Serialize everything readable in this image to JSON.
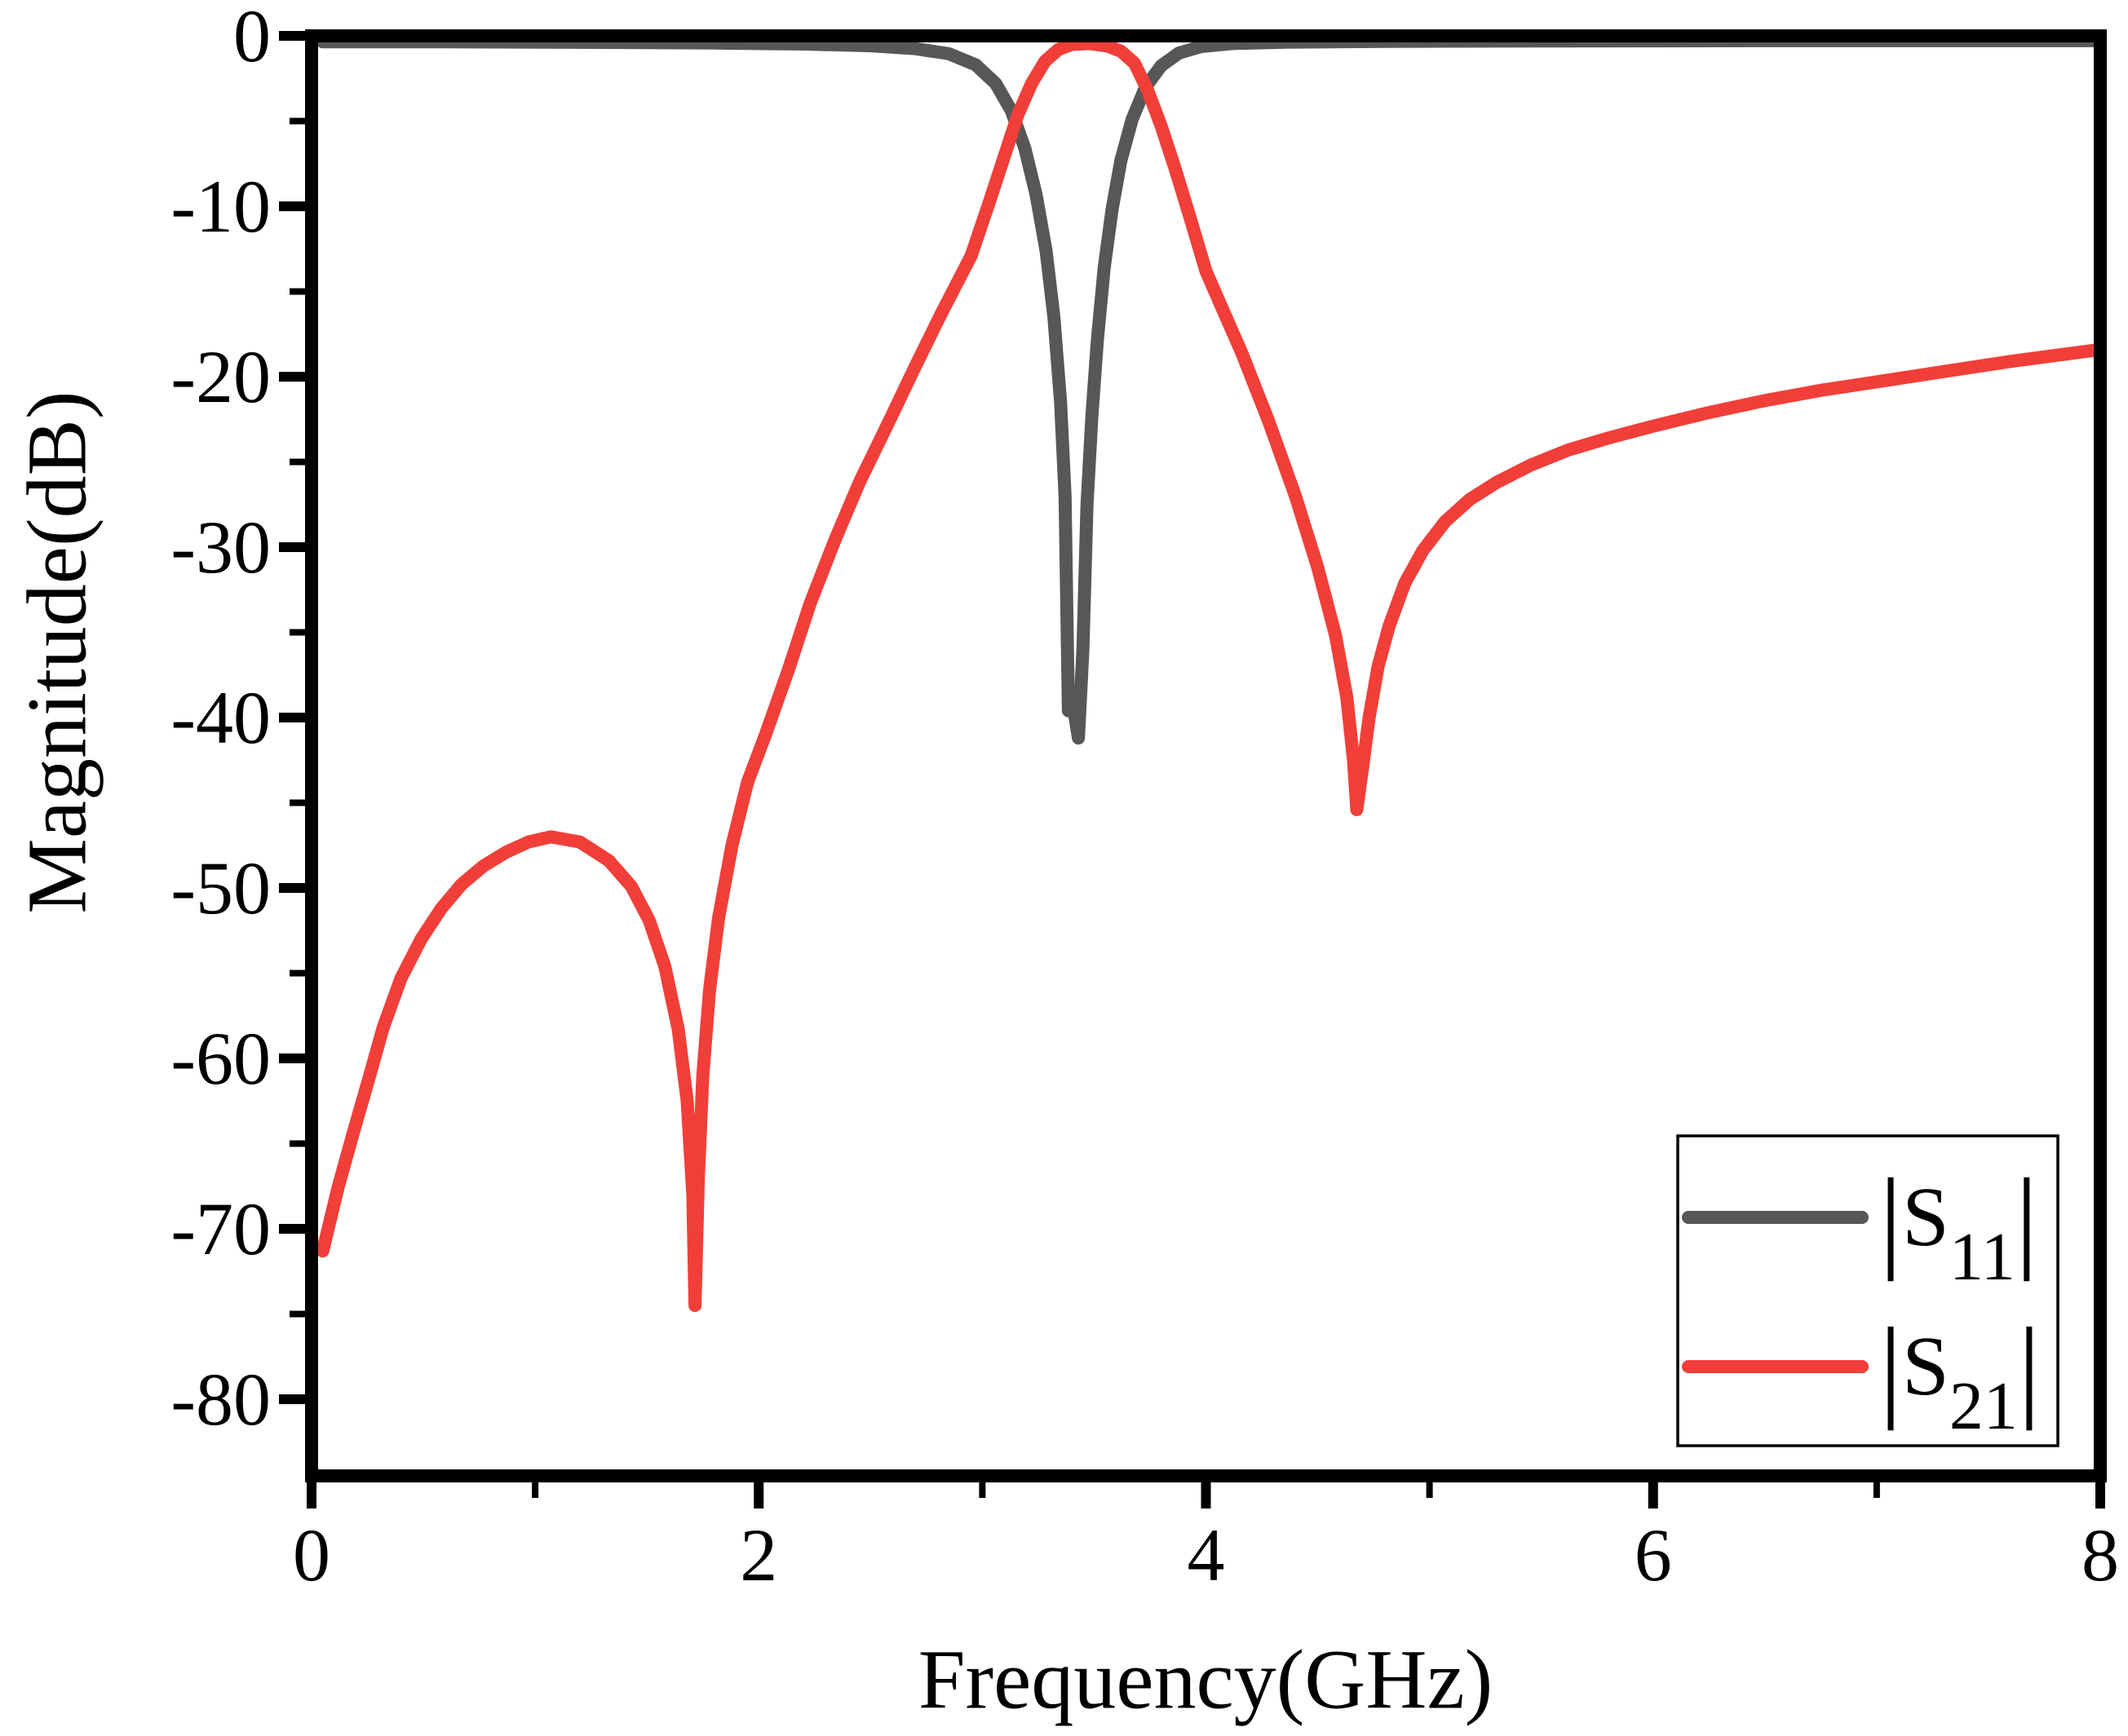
{
  "chart_data": {
    "type": "line",
    "title": "",
    "xlabel": "Frequency(GHz)",
    "ylabel": "Magnitude(dB)",
    "grid": false,
    "background_color": "#ffffff",
    "frame_color": "#000000",
    "x_axis": {
      "min": 0,
      "max": 8,
      "major_ticks": [
        0,
        2,
        4,
        6,
        8
      ],
      "minor_ticks": [
        1,
        3,
        5,
        7
      ]
    },
    "y_axis": {
      "min": -84.5,
      "max": 0,
      "major_ticks": [
        0,
        -10,
        -20,
        -30,
        -40,
        -50,
        -60,
        -70,
        -80
      ],
      "minor_ticks": [
        -5,
        -15,
        -25,
        -35,
        -45,
        -55,
        -65,
        -75
      ]
    },
    "legend": {
      "position": "lower-right",
      "entries": [
        {
          "bar": "|",
          "base": "S",
          "sub": "11",
          "color": "#575757"
        },
        {
          "bar": "|",
          "base": "S",
          "sub": "21",
          "color": "#f23e39"
        }
      ]
    },
    "series": [
      {
        "name": "S11",
        "color": "#575757",
        "line_width": 16,
        "points": [
          [
            0.05,
            -0.35
          ],
          [
            0.6,
            -0.35
          ],
          [
            1.2,
            -0.38
          ],
          [
            1.8,
            -0.42
          ],
          [
            2.2,
            -0.48
          ],
          [
            2.5,
            -0.58
          ],
          [
            2.7,
            -0.75
          ],
          [
            2.85,
            -1.05
          ],
          [
            2.97,
            -1.7
          ],
          [
            3.06,
            -2.8
          ],
          [
            3.13,
            -4.4
          ],
          [
            3.19,
            -6.6
          ],
          [
            3.24,
            -9.3
          ],
          [
            3.285,
            -12.6
          ],
          [
            3.32,
            -16.5
          ],
          [
            3.35,
            -21.5
          ],
          [
            3.37,
            -27.0
          ],
          [
            3.385,
            -39.6
          ],
          [
            3.4,
            -38.8
          ],
          [
            3.43,
            -41.2
          ],
          [
            3.45,
            -36.0
          ],
          [
            3.468,
            -27.5
          ],
          [
            3.49,
            -22.3
          ],
          [
            3.515,
            -17.8
          ],
          [
            3.545,
            -13.6
          ],
          [
            3.58,
            -10.2
          ],
          [
            3.62,
            -7.3
          ],
          [
            3.67,
            -4.9
          ],
          [
            3.73,
            -3.0
          ],
          [
            3.8,
            -1.75
          ],
          [
            3.88,
            -1.0
          ],
          [
            3.98,
            -0.62
          ],
          [
            4.12,
            -0.45
          ],
          [
            4.35,
            -0.37
          ],
          [
            4.8,
            -0.32
          ],
          [
            5.5,
            -0.3
          ],
          [
            6.5,
            -0.28
          ],
          [
            8.0,
            -0.28
          ]
        ]
      },
      {
        "name": "S21",
        "color": "#f23e39",
        "line_width": 16,
        "points": [
          [
            0.05,
            -71.3
          ],
          [
            0.12,
            -67.5
          ],
          [
            0.19,
            -64.2
          ],
          [
            0.26,
            -61.0
          ],
          [
            0.32,
            -58.2
          ],
          [
            0.4,
            -55.3
          ],
          [
            0.49,
            -53.0
          ],
          [
            0.58,
            -51.2
          ],
          [
            0.67,
            -49.8
          ],
          [
            0.77,
            -48.7
          ],
          [
            0.87,
            -47.9
          ],
          [
            0.97,
            -47.3
          ],
          [
            1.07,
            -47.0
          ],
          [
            1.2,
            -47.3
          ],
          [
            1.33,
            -48.4
          ],
          [
            1.43,
            -49.9
          ],
          [
            1.51,
            -51.9
          ],
          [
            1.58,
            -54.6
          ],
          [
            1.64,
            -58.3
          ],
          [
            1.68,
            -62.5
          ],
          [
            1.705,
            -68.0
          ],
          [
            1.715,
            -74.5
          ],
          [
            1.73,
            -67.0
          ],
          [
            1.75,
            -61.0
          ],
          [
            1.78,
            -56.0
          ],
          [
            1.82,
            -51.8
          ],
          [
            1.88,
            -47.5
          ],
          [
            1.95,
            -43.8
          ],
          [
            2.03,
            -41.0
          ],
          [
            2.13,
            -37.3
          ],
          [
            2.23,
            -33.3
          ],
          [
            2.34,
            -29.6
          ],
          [
            2.45,
            -26.2
          ],
          [
            2.58,
            -22.7
          ],
          [
            2.7,
            -19.4
          ],
          [
            2.82,
            -16.2
          ],
          [
            2.95,
            -12.9
          ],
          [
            3.03,
            -9.8
          ],
          [
            3.1,
            -7.0
          ],
          [
            3.16,
            -4.6
          ],
          [
            3.22,
            -2.8
          ],
          [
            3.28,
            -1.5
          ],
          [
            3.34,
            -0.8
          ],
          [
            3.4,
            -0.5
          ],
          [
            3.48,
            -0.45
          ],
          [
            3.56,
            -0.6
          ],
          [
            3.62,
            -0.9
          ],
          [
            3.68,
            -1.6
          ],
          [
            3.74,
            -3.2
          ],
          [
            3.8,
            -5.3
          ],
          [
            3.86,
            -7.7
          ],
          [
            3.93,
            -10.7
          ],
          [
            4.0,
            -13.8
          ],
          [
            4.08,
            -16.2
          ],
          [
            4.16,
            -18.6
          ],
          [
            4.28,
            -22.6
          ],
          [
            4.4,
            -27.0
          ],
          [
            4.5,
            -31.2
          ],
          [
            4.58,
            -35.2
          ],
          [
            4.63,
            -38.8
          ],
          [
            4.66,
            -42.5
          ],
          [
            4.675,
            -45.4
          ],
          [
            4.7,
            -43.0
          ],
          [
            4.73,
            -40.0
          ],
          [
            4.77,
            -37.0
          ],
          [
            4.82,
            -34.6
          ],
          [
            4.89,
            -32.1
          ],
          [
            4.97,
            -30.2
          ],
          [
            5.07,
            -28.5
          ],
          [
            5.18,
            -27.2
          ],
          [
            5.3,
            -26.2
          ],
          [
            5.45,
            -25.2
          ],
          [
            5.62,
            -24.3
          ],
          [
            5.8,
            -23.6
          ],
          [
            6.0,
            -22.9
          ],
          [
            6.25,
            -22.1
          ],
          [
            6.5,
            -21.4
          ],
          [
            6.75,
            -20.8
          ],
          [
            7.0,
            -20.3
          ],
          [
            7.3,
            -19.7
          ],
          [
            7.6,
            -19.1
          ],
          [
            8.0,
            -18.4
          ]
        ]
      }
    ]
  }
}
